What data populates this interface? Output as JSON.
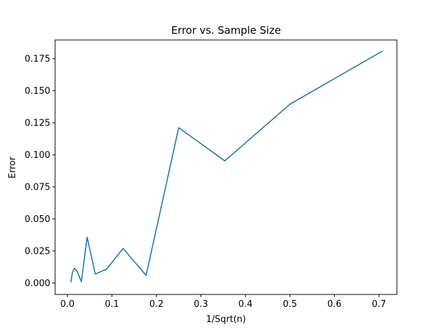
{
  "chart_data": {
    "type": "line",
    "title": "Error vs. Sample Size",
    "xlabel": "1/Sqrt(n)",
    "ylabel": "Error",
    "xlim": [
      -0.0277,
      0.7403
    ],
    "ylim": [
      -0.0089,
      0.1896
    ],
    "xticks": [
      0.0,
      0.1,
      0.2,
      0.3,
      0.4,
      0.5,
      0.6,
      0.7
    ],
    "xtick_labels": [
      "0.0",
      "0.1",
      "0.2",
      "0.3",
      "0.4",
      "0.5",
      "0.6",
      "0.7"
    ],
    "yticks": [
      0.0,
      0.025,
      0.05,
      0.075,
      0.1,
      0.125,
      0.15,
      0.175
    ],
    "ytick_labels": [
      "0.000",
      "0.025",
      "0.050",
      "0.075",
      "0.100",
      "0.125",
      "0.150",
      "0.175"
    ],
    "grid": false,
    "line_color": "#1f77b4",
    "series": [
      {
        "x": [
          0.0078,
          0.011,
          0.0156,
          0.0221,
          0.0313,
          0.0442,
          0.0625,
          0.0884,
          0.125,
          0.1768,
          0.25,
          0.3536,
          0.5,
          0.7071
        ],
        "y": [
          0.001,
          0.008,
          0.0115,
          0.009,
          0.001,
          0.0358,
          0.007,
          0.011,
          0.027,
          0.006,
          0.1212,
          0.0953,
          0.1395,
          0.1808
        ]
      }
    ]
  }
}
